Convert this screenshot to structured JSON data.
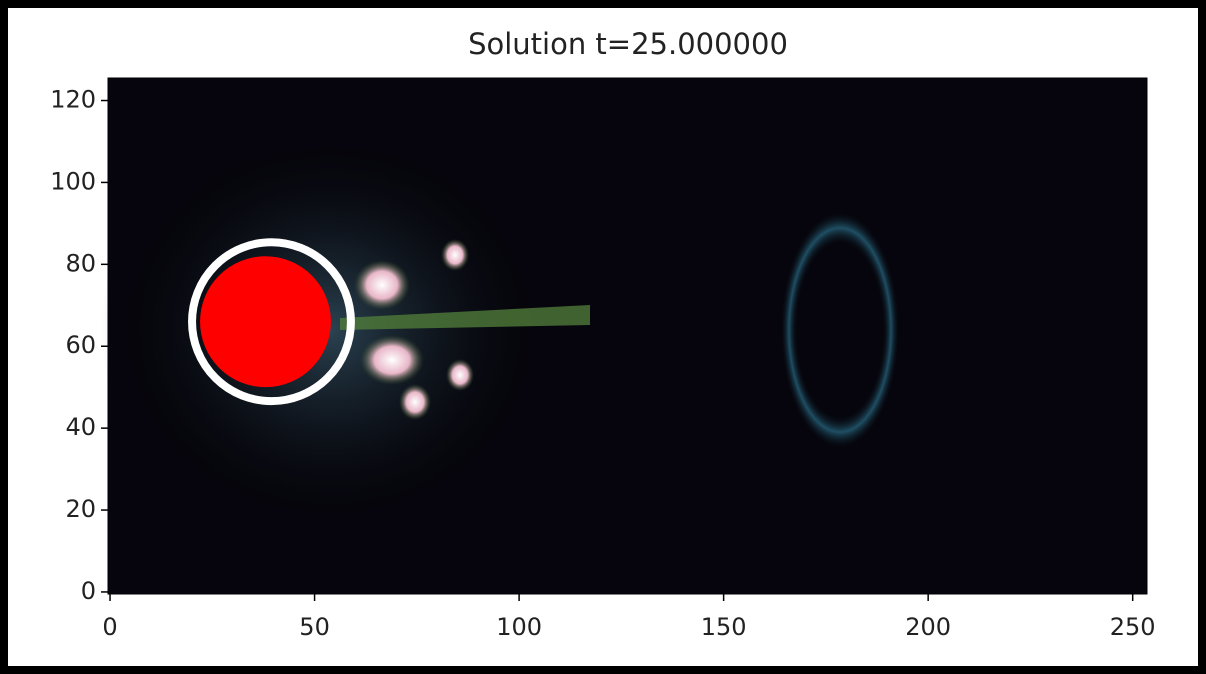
{
  "chart_data": {
    "type": "image",
    "title": "Solution t=25.000000",
    "xlim": [
      -0.5,
      253.5
    ],
    "ylim": [
      -0.5,
      125.5
    ],
    "xticks": [
      0,
      50,
      100,
      150,
      200,
      250
    ],
    "yticks": [
      0,
      20,
      40,
      60,
      80,
      100,
      120
    ],
    "obstacle": {
      "x": 38,
      "y": 66,
      "r": 16,
      "color": "#ff0000"
    }
  }
}
